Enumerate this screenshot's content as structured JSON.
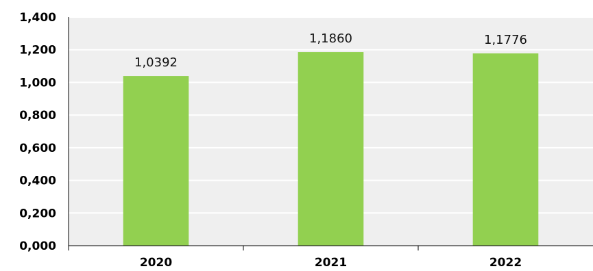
{
  "chart_data": {
    "type": "bar",
    "categories": [
      "2020",
      "2021",
      "2022"
    ],
    "values": [
      1.0392,
      1.186,
      1.1776
    ],
    "data_labels": [
      "1,0392",
      "1,1860",
      "1,1776"
    ],
    "y_ticks": [
      0,
      0.2,
      0.4,
      0.6,
      0.8,
      1.0,
      1.2,
      1.4
    ],
    "y_tick_labels": [
      "0,000",
      "0,200",
      "0,400",
      "0,600",
      "0,800",
      "1,000",
      "1,200",
      "1,400"
    ],
    "ylim": [
      0,
      1.4
    ],
    "title": "",
    "xlabel": "",
    "ylabel": "",
    "grid": true,
    "legend": "none",
    "colors": {
      "bar": "#92d050",
      "plot_background": "#efefef",
      "gridline": "#ffffff"
    }
  }
}
